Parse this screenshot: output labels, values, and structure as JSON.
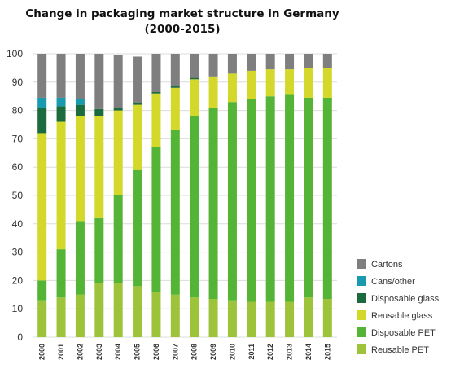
{
  "title_line1": "Change in packaging market structure in Germany",
  "title_line2": "(2000-2015)",
  "chart_data": {
    "type": "bar",
    "stacked": true,
    "title": "Change in packaging market structure in Germany (2000-2015)",
    "categories": [
      "2000",
      "2001",
      "2002",
      "2003",
      "2004",
      "2005",
      "2006",
      "2007",
      "2008",
      "2009",
      "2010",
      "2011",
      "2012",
      "2013",
      "2014",
      "2015"
    ],
    "ylim": [
      0,
      100
    ],
    "yticks": [
      0,
      10,
      20,
      30,
      40,
      50,
      60,
      70,
      80,
      90,
      100
    ],
    "grid": true,
    "legend_position": "right-bottom",
    "series": [
      {
        "name": "Reusable PET",
        "color": "#9dc33b",
        "values": [
          13,
          14,
          15,
          19,
          19,
          18,
          16,
          15,
          14,
          13.5,
          13,
          12.5,
          12.5,
          12.5,
          14,
          13.5
        ]
      },
      {
        "name": "Disposable PET",
        "color": "#54b435",
        "values": [
          7,
          17,
          26,
          23,
          31,
          41,
          51,
          58,
          64,
          67.5,
          70,
          71.5,
          72.5,
          73,
          70.5,
          71
        ]
      },
      {
        "name": "Reusable glass",
        "color": "#d3d82a",
        "values": [
          52,
          45,
          37,
          36,
          30,
          23,
          19,
          15,
          13,
          11,
          10,
          10,
          9.5,
          9,
          10.5,
          10.5
        ]
      },
      {
        "name": "Disposable glass",
        "color": "#1c6b3e",
        "values": [
          9,
          5.5,
          4,
          2.5,
          1,
          0.5,
          0.5,
          0.5,
          0.5,
          0,
          0,
          0,
          0,
          0,
          0,
          0
        ]
      },
      {
        "name": "Cans/other",
        "color": "#1a9aae",
        "values": [
          3.5,
          3,
          2,
          0,
          0,
          0,
          0,
          0,
          0,
          0,
          0,
          0,
          0,
          0,
          0,
          0
        ]
      },
      {
        "name": "Cartons",
        "color": "#7f7f7f",
        "values": [
          15.5,
          15.5,
          16,
          19.5,
          18.5,
          16.5,
          13.5,
          11.5,
          8.5,
          8,
          7,
          6,
          5.5,
          5.5,
          5,
          5
        ]
      }
    ]
  },
  "legend_order": [
    "Cartons",
    "Cans/other",
    "Disposable glass",
    "Reusable glass",
    "Disposable PET",
    "Reusable PET"
  ]
}
